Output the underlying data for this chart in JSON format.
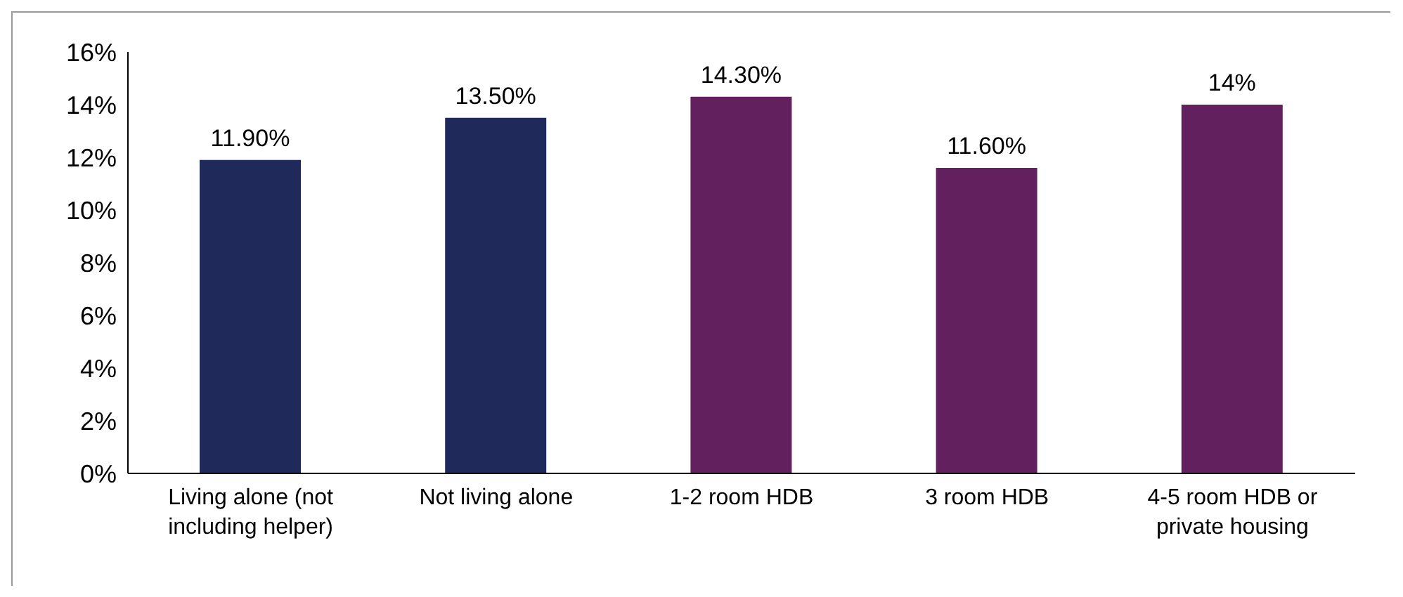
{
  "chart_data": {
    "type": "bar",
    "categories": [
      "Living alone (not including helper)",
      "Not living alone",
      "1-2 room HDB",
      "3 room HDB",
      "4-5 room HDB or private housing"
    ],
    "values": [
      11.9,
      13.5,
      14.3,
      11.6,
      14
    ],
    "colors": [
      "#1f2a5a",
      "#1f2a5a",
      "#62205f",
      "#62205f",
      "#62205f"
    ],
    "value_labels": [
      "11.90%",
      "13.50%",
      "14.30%",
      "11.60%",
      "14%"
    ],
    "ylim": [
      0,
      16
    ],
    "yticks": [
      {
        "value": 0,
        "label": "0%"
      },
      {
        "value": 2,
        "label": "2%"
      },
      {
        "value": 4,
        "label": "4%"
      },
      {
        "value": 6,
        "label": "6%"
      },
      {
        "value": 8,
        "label": "8%"
      },
      {
        "value": 10,
        "label": "10%"
      },
      {
        "value": 12,
        "label": "12%"
      },
      {
        "value": 14,
        "label": "14%"
      },
      {
        "value": 16,
        "label": "16%"
      }
    ],
    "grid": false,
    "legend": false
  }
}
